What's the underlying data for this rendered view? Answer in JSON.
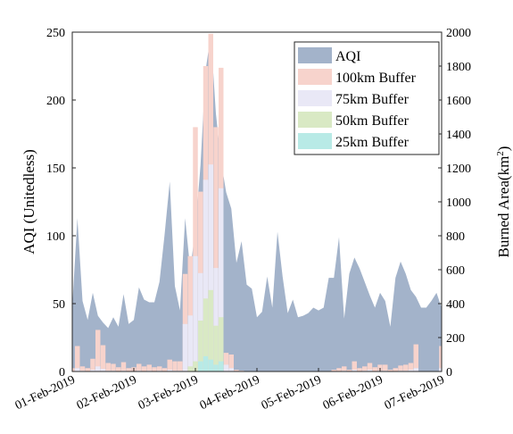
{
  "chart_data": {
    "type": "area",
    "ylabel": "AQI (Unitedless)",
    "y2label_prefix": "Burned Area(km",
    "y2label_sup": "2",
    "y2label_suffix": ")",
    "ylim": [
      0,
      250
    ],
    "y2lim": [
      0,
      2000
    ],
    "yticks": [
      0,
      50,
      100,
      150,
      200,
      250
    ],
    "y2ticks": [
      0,
      200,
      400,
      600,
      800,
      1000,
      1200,
      1400,
      1600,
      1800,
      2000
    ],
    "xlim": [
      0,
      144
    ],
    "xticks": [
      0,
      24,
      48,
      72,
      96,
      120,
      144
    ],
    "xtick_labels": [
      "01-Feb-2019",
      "02-Feb-2019",
      "03-Feb-2019",
      "04-Feb-2019",
      "05-Feb-2019",
      "06-Feb-2019",
      "07-Feb-2019"
    ],
    "grid": false,
    "legend_position": "top-right",
    "aqi": {
      "name": "AQI",
      "color": "#a3b3ca",
      "x": [
        0,
        2,
        4,
        6,
        8,
        10,
        12,
        14,
        16,
        18,
        20,
        22,
        24,
        26,
        28,
        30,
        32,
        34,
        36,
        38,
        40,
        42,
        44,
        46,
        48,
        50,
        52,
        54,
        56,
        58,
        60,
        62,
        64,
        66,
        68,
        70,
        72,
        74,
        76,
        78,
        80,
        82,
        84,
        86,
        88,
        90,
        92,
        94,
        96,
        98,
        100,
        102,
        104,
        106,
        108,
        110,
        112,
        114,
        116,
        118,
        120,
        122,
        124,
        126,
        128,
        130,
        132,
        134,
        136,
        138,
        140,
        142,
        144
      ],
      "values": [
        48,
        113,
        52,
        38,
        58,
        41,
        36,
        32,
        40,
        33,
        57,
        35,
        38,
        62,
        53,
        51,
        51,
        66,
        101,
        140,
        63,
        45,
        113,
        75,
        105,
        152,
        222,
        248,
        190,
        155,
        132,
        120,
        80,
        96,
        64,
        61,
        40,
        44,
        70,
        47,
        103,
        70,
        43,
        53,
        40,
        41,
        43,
        47,
        45,
        47,
        69,
        69,
        99,
        39,
        72,
        84,
        76,
        66,
        56,
        47,
        58,
        52,
        33,
        69,
        81,
        72,
        60,
        55,
        47,
        47,
        52,
        58,
        47
      ]
    },
    "bars": {
      "x": [
        0,
        2,
        4,
        6,
        8,
        10,
        12,
        14,
        16,
        18,
        20,
        22,
        24,
        26,
        28,
        30,
        32,
        34,
        36,
        38,
        40,
        42,
        44,
        46,
        48,
        50,
        52,
        54,
        56,
        58,
        60,
        62,
        64,
        66,
        68,
        70,
        72,
        74,
        76,
        78,
        80,
        82,
        84,
        86,
        88,
        90,
        92,
        94,
        96,
        98,
        100,
        102,
        104,
        106,
        108,
        110,
        112,
        114,
        116,
        118,
        120,
        122,
        124,
        126,
        128,
        130,
        132,
        134,
        136,
        138,
        140,
        142,
        144
      ],
      "width": 1.9,
      "series": [
        {
          "name": "100km Buffer",
          "color": "#f7d3cc",
          "values": [
            20,
            150,
            30,
            20,
            75,
            245,
            155,
            50,
            45,
            25,
            55,
            20,
            25,
            45,
            30,
            40,
            25,
            30,
            20,
            70,
            60,
            60,
            575,
            680,
            1440,
            1060,
            1800,
            1990,
            1440,
            1790,
            110,
            100,
            10,
            5,
            0,
            0,
            0,
            0,
            0,
            0,
            0,
            0,
            0,
            0,
            0,
            0,
            0,
            0,
            0,
            0,
            0,
            10,
            20,
            30,
            10,
            60,
            20,
            30,
            50,
            25,
            40,
            40,
            10,
            20,
            35,
            40,
            50,
            160,
            0,
            0,
            0,
            0,
            150
          ]
        },
        {
          "name": "75km Buffer",
          "color": "#e9e8f6",
          "values": [
            0,
            20,
            5,
            0,
            10,
            30,
            15,
            5,
            5,
            0,
            5,
            0,
            0,
            5,
            0,
            5,
            0,
            5,
            0,
            10,
            5,
            5,
            280,
            330,
            680,
            580,
            1130,
            1220,
            610,
            1080,
            40,
            20,
            0,
            0,
            0,
            0,
            0,
            0,
            0,
            0,
            0,
            0,
            0,
            0,
            0,
            0,
            0,
            0,
            0,
            0,
            0,
            0,
            0,
            5,
            0,
            10,
            0,
            5,
            10,
            0,
            5,
            5,
            0,
            0,
            5,
            5,
            10,
            20,
            0,
            0,
            0,
            0,
            20
          ]
        },
        {
          "name": "50km Buffer",
          "color": "#d9e9c4",
          "values": [
            0,
            0,
            0,
            0,
            0,
            0,
            0,
            0,
            0,
            0,
            0,
            0,
            0,
            0,
            0,
            0,
            0,
            0,
            0,
            0,
            0,
            0,
            0,
            30,
            60,
            300,
            430,
            480,
            270,
            320,
            0,
            0,
            0,
            0,
            0,
            0,
            0,
            0,
            0,
            0,
            0,
            0,
            0,
            0,
            0,
            0,
            0,
            0,
            0,
            0,
            0,
            0,
            0,
            0,
            0,
            0,
            0,
            0,
            0,
            0,
            0,
            0,
            0,
            0,
            0,
            0,
            0,
            0,
            0,
            0,
            0,
            0,
            0
          ]
        },
        {
          "name": "25km Buffer",
          "color": "#b8eae6",
          "values": [
            0,
            0,
            0,
            0,
            0,
            0,
            0,
            0,
            0,
            0,
            0,
            0,
            0,
            0,
            0,
            0,
            0,
            0,
            0,
            0,
            0,
            0,
            0,
            0,
            0,
            60,
            90,
            70,
            40,
            60,
            0,
            0,
            0,
            0,
            0,
            0,
            0,
            0,
            0,
            0,
            0,
            0,
            0,
            0,
            0,
            0,
            0,
            0,
            0,
            0,
            0,
            0,
            0,
            0,
            0,
            0,
            0,
            0,
            0,
            0,
            0,
            0,
            0,
            0,
            0,
            0,
            0,
            0,
            0,
            0,
            0,
            0,
            0
          ]
        }
      ]
    },
    "legend": [
      "AQI",
      "100km Buffer",
      "75km Buffer",
      "50km Buffer",
      "25km Buffer"
    ]
  }
}
